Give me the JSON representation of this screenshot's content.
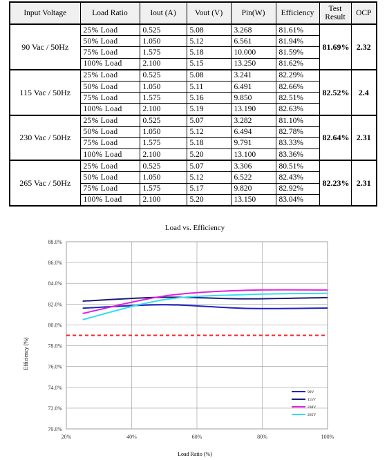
{
  "table": {
    "headers": [
      "Input Voltage",
      "Load Ratio",
      "Iout (A)",
      "Vout (V)",
      "Pin(W)",
      "Efficiency",
      "Test Result",
      "OCP"
    ],
    "groups": [
      {
        "input": "90 Vac / 50Hz",
        "test_result": "81.69%",
        "ocp": "2.32",
        "rows": [
          {
            "load": "25% Load",
            "iout": "0.525",
            "vout": "5.08",
            "pin": "3.268",
            "eff": "81.61%"
          },
          {
            "load": "50% Load",
            "iout": "1.050",
            "vout": "5.12",
            "pin": "6.561",
            "eff": "81.94%"
          },
          {
            "load": "75% Load",
            "iout": "1.575",
            "vout": "5.18",
            "pin": "10.000",
            "eff": "81.59%"
          },
          {
            "load": "100% Load",
            "iout": "2.100",
            "vout": "5.15",
            "pin": "13.250",
            "eff": "81.62%"
          }
        ]
      },
      {
        "input": "115 Vac / 50Hz",
        "test_result": "82.52%",
        "ocp": "2.4",
        "rows": [
          {
            "load": "25% Load",
            "iout": "0.525",
            "vout": "5.08",
            "pin": "3.241",
            "eff": "82.29%"
          },
          {
            "load": "50% Load",
            "iout": "1.050",
            "vout": "5.11",
            "pin": "6.491",
            "eff": "82.66%"
          },
          {
            "load": "75% Load",
            "iout": "1.575",
            "vout": "5.16",
            "pin": "9.850",
            "eff": "82.51%"
          },
          {
            "load": "100% Load",
            "iout": "2.100",
            "vout": "5.19",
            "pin": "13.190",
            "eff": "82.63%"
          }
        ]
      },
      {
        "input": "230 Vac / 50Hz",
        "test_result": "82.64%",
        "ocp": "2.31",
        "rows": [
          {
            "load": "25% Load",
            "iout": "0.525",
            "vout": "5.07",
            "pin": "3.282",
            "eff": "81.10%"
          },
          {
            "load": "50% Load",
            "iout": "1.050",
            "vout": "5.12",
            "pin": "6.494",
            "eff": "82.78%"
          },
          {
            "load": "75% Load",
            "iout": "1.575",
            "vout": "5.18",
            "pin": "9.791",
            "eff": "83.33%"
          },
          {
            "load": "100% Load",
            "iout": "2.100",
            "vout": "5.20",
            "pin": "13.100",
            "eff": "83.36%"
          }
        ]
      },
      {
        "input": "265 Vac / 50Hz",
        "test_result": "82.23%",
        "ocp": "2.31",
        "rows": [
          {
            "load": "25% Load",
            "iout": "0.525",
            "vout": "5.07",
            "pin": "3.306",
            "eff": "80.51%"
          },
          {
            "load": "50% Load",
            "iout": "1.050",
            "vout": "5.12",
            "pin": "6.522",
            "eff": "82.43%"
          },
          {
            "load": "75% Load",
            "iout": "1.575",
            "vout": "5.17",
            "pin": "9.820",
            "eff": "82.92%"
          },
          {
            "load": "100% Load",
            "iout": "2.100",
            "vout": "5.20",
            "pin": "13.150",
            "eff": "83.04%"
          }
        ]
      }
    ]
  },
  "chart_data": {
    "type": "line",
    "title": "Load vs. Efficiency",
    "xlabel": "Load Ratio (%)",
    "ylabel": "Efficiency (%)",
    "xlim": [
      20,
      100
    ],
    "ylim": [
      70,
      88
    ],
    "x_ticks": [
      "20%",
      "40%",
      "60%",
      "80%",
      "100%"
    ],
    "y_ticks": [
      "70.0%",
      "72.0%",
      "74.0%",
      "76.0%",
      "78.0%",
      "80.0%",
      "82.0%",
      "84.0%",
      "86.0%",
      "88.0%"
    ],
    "grid": true,
    "legend": "bottom-right",
    "series": [
      {
        "name": "90V",
        "color": "#2020c8",
        "x": [
          25,
          50,
          75,
          100
        ],
        "y": [
          81.61,
          81.94,
          81.59,
          81.62
        ]
      },
      {
        "name": "115V",
        "color": "#1a1a7a",
        "x": [
          25,
          50,
          75,
          100
        ],
        "y": [
          82.29,
          82.66,
          82.51,
          82.63
        ]
      },
      {
        "name": "230V",
        "color": "#e020e0",
        "x": [
          25,
          50,
          75,
          100
        ],
        "y": [
          81.1,
          82.78,
          83.33,
          83.36
        ]
      },
      {
        "name": "265V",
        "color": "#30e0f0",
        "x": [
          25,
          50,
          75,
          100
        ],
        "y": [
          80.51,
          82.43,
          82.92,
          83.04
        ]
      }
    ],
    "reference_line": {
      "y": 79.0,
      "color": "#ff2020",
      "style": "dashed"
    }
  }
}
